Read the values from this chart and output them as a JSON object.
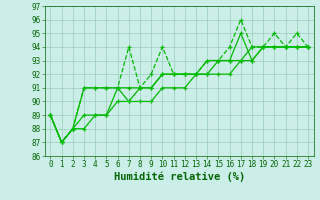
{
  "x": [
    0,
    1,
    2,
    3,
    4,
    5,
    6,
    7,
    8,
    9,
    10,
    11,
    12,
    13,
    14,
    15,
    16,
    17,
    18,
    19,
    20,
    21,
    22,
    23
  ],
  "series": [
    [
      89,
      87,
      88,
      91,
      91,
      91,
      91,
      94,
      91,
      92,
      94,
      92,
      92,
      92,
      93,
      93,
      94,
      96,
      94,
      94,
      95,
      94,
      95,
      94
    ],
    [
      89,
      87,
      88,
      91,
      91,
      91,
      91,
      90,
      91,
      91,
      92,
      92,
      92,
      92,
      93,
      93,
      93,
      95,
      93,
      94,
      94,
      94,
      94,
      94
    ],
    [
      89,
      87,
      88,
      89,
      89,
      89,
      91,
      91,
      91,
      91,
      92,
      92,
      92,
      92,
      92,
      93,
      93,
      93,
      94,
      94,
      94,
      94,
      94,
      94
    ],
    [
      89,
      87,
      88,
      88,
      89,
      89,
      90,
      90,
      90,
      90,
      91,
      91,
      91,
      92,
      92,
      92,
      92,
      93,
      93,
      94,
      94,
      94,
      94,
      94
    ]
  ],
  "line_color": "#00bb00",
  "marker": "+",
  "bg_color": "#cceee8",
  "grid_color": "#99ccbb",
  "ylim": [
    86,
    97
  ],
  "yticks": [
    86,
    87,
    88,
    89,
    90,
    91,
    92,
    93,
    94,
    95,
    96,
    97
  ],
  "xlabel": "Humidité relative (%)",
  "xlabel_fontsize": 7.5,
  "tick_fontsize": 5.5,
  "line_width": 0.9,
  "marker_size": 3.5,
  "line_styles": [
    "--",
    "-",
    "-",
    "-"
  ]
}
